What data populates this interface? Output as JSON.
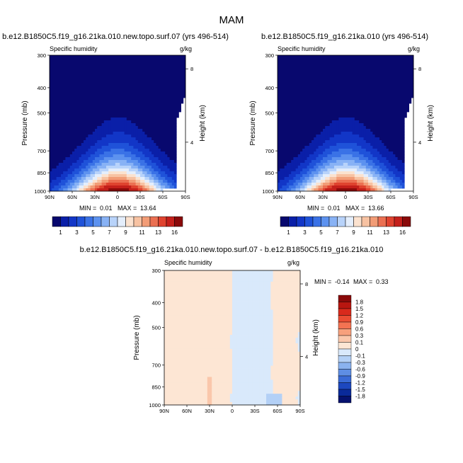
{
  "page": {
    "title": "MAM"
  },
  "chart_data": [
    {
      "type": "heatmap",
      "id": "p1",
      "title": "b.e12.B1850C5.f19_g16.21ka.010.new.topo.surf.07 (yrs 496-514)",
      "left_label": "Specific humidity",
      "right_label": "g/kg",
      "ylabel": "Pressure (mb)",
      "y2label": "Height (km)",
      "xticks": [
        "90N",
        "60N",
        "30N",
        "0",
        "30S",
        "60S",
        "90S"
      ],
      "yticks": [
        "300",
        "400",
        "500",
        "700",
        "850",
        "1000"
      ],
      "y2ticks": [
        "8",
        "4"
      ],
      "stats": {
        "min_label": "MIN =",
        "min": "0.01",
        "max_label": "MAX =",
        "max": "13.64"
      },
      "colorbar_labels": [
        "1",
        "3",
        "5",
        "7",
        "9",
        "11",
        "13",
        "16"
      ]
    },
    {
      "type": "heatmap",
      "id": "p2",
      "title": "b.e12.B1850C5.f19_g16.21ka.010 (yrs 496-514)",
      "left_label": "Specific humidity",
      "right_label": "g/kg",
      "ylabel": "Pressure (mb)",
      "y2label": "Height (km)",
      "xticks": [
        "90N",
        "60N",
        "30N",
        "0",
        "30S",
        "60S",
        "90S"
      ],
      "yticks": [
        "300",
        "400",
        "500",
        "700",
        "850",
        "1000"
      ],
      "y2ticks": [
        "8",
        "4"
      ],
      "stats": {
        "min_label": "MIN =",
        "min": "0.01",
        "max_label": "MAX =",
        "max": "13.66"
      },
      "colorbar_labels": [
        "1",
        "3",
        "5",
        "7",
        "9",
        "11",
        "13",
        "16"
      ]
    },
    {
      "type": "heatmap",
      "id": "p3",
      "title": "b.e12.B1850C5.f19_g16.21ka.010.new.topo.surf.07 - b.e12.B1850C5.f19_g16.21ka.010",
      "left_label": "Specific humidity",
      "right_label": "g/kg",
      "ylabel": "Pressure (mb)",
      "y2label": "Height (km)",
      "xticks": [
        "90N",
        "60N",
        "30N",
        "0",
        "30S",
        "60S",
        "90S"
      ],
      "yticks": [
        "300",
        "400",
        "500",
        "700",
        "850",
        "1000"
      ],
      "y2ticks": [
        "8",
        "4"
      ],
      "stats": {
        "min_label": "MIN =",
        "min": "-0.14",
        "max_label": "MAX =",
        "max": "0.33"
      },
      "colorbar_labels": [
        "1.8",
        "1.5",
        "1.2",
        "0.9",
        "0.6",
        "0.3",
        "0.1",
        "0",
        "-0.1",
        "-0.3",
        "-0.6",
        "-0.9",
        "-1.2",
        "-1.5",
        "-1.8"
      ]
    }
  ],
  "colors": {
    "humidity_scale": [
      "#08086e",
      "#0a1fa8",
      "#1236c7",
      "#1f52d9",
      "#3a72e6",
      "#5d92ef",
      "#88b2f5",
      "#b8d3fa",
      "#e4eefc",
      "#fbe2cf",
      "#f7c2a2",
      "#f29c76",
      "#eb7052",
      "#e0432f",
      "#c4201b",
      "#8a0a0a"
    ],
    "diff_scale": [
      "#8a0a0a",
      "#b81610",
      "#d92a1c",
      "#eb4d33",
      "#f47352",
      "#f7a07c",
      "#fac7ab",
      "#fde6d4",
      "#d9e9fb",
      "#b3d0f6",
      "#8ab2ef",
      "#5e8ee4",
      "#3a6bd6",
      "#1d48bf",
      "#0a2a9a",
      "#06126e"
    ]
  }
}
